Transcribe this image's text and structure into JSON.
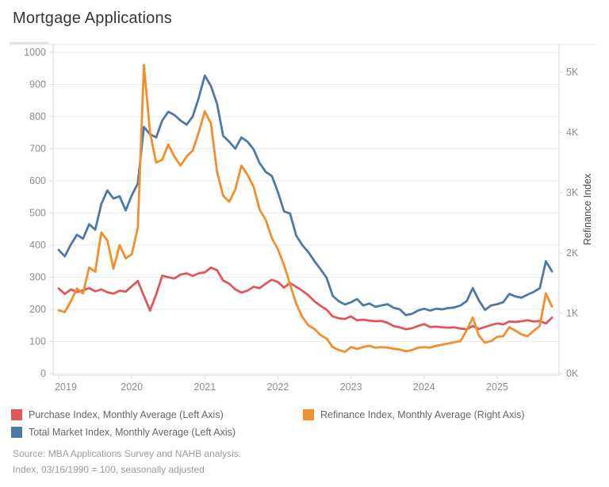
{
  "title": "Mortgage Applications",
  "source": {
    "line1": "Source: MBA Applications Survey and NAHB analysis.",
    "line2": "Index, 03/16/1990 = 100, seasonally adjusted"
  },
  "colors": {
    "purchase": "#e15759",
    "total_market": "#4e79a7",
    "refinance": "#f28e2b",
    "gridline": "#ececec",
    "axis_line": "#d7d7d7",
    "tick_label": "#8c8c8c",
    "axis_title": "#4a4a4a",
    "title_text": "#363636"
  },
  "chart_data": {
    "type": "line",
    "title": "Mortgage Applications",
    "x_tick_labels": [
      "2019",
      "2020",
      "2021",
      "2022",
      "2023",
      "2024",
      "2025"
    ],
    "x_months": {
      "start": "2019-01",
      "end": "2025-10",
      "count": 82
    },
    "left_axis": {
      "ticks": [
        0,
        100,
        200,
        300,
        400,
        500,
        600,
        700,
        800,
        900,
        1000
      ],
      "range": [
        0,
        1000
      ],
      "label": ""
    },
    "right_axis": {
      "tick_labels": [
        "0K",
        "1K",
        "2K",
        "3K",
        "4K",
        "5K"
      ],
      "range": [
        0,
        5000
      ],
      "label": "Refinance Index"
    },
    "grid": "horizontal-only",
    "legend_position": "bottom",
    "series": [
      {
        "id": "purchase",
        "legend_label": "Purchase Index, Monthly Average (Left Axis)",
        "axis": "left",
        "color": "#e15759",
        "values": [
          265,
          248,
          262,
          254,
          259,
          266,
          256,
          262,
          253,
          249,
          258,
          255,
          272,
          288,
          242,
          196,
          246,
          305,
          300,
          296,
          308,
          312,
          304,
          312,
          315,
          330,
          322,
          290,
          280,
          262,
          252,
          258,
          270,
          266,
          280,
          292,
          285,
          268,
          282,
          270,
          258,
          244,
          225,
          211,
          199,
          178,
          172,
          170,
          178,
          166,
          168,
          165,
          163,
          164,
          158,
          148,
          144,
          138,
          141,
          148,
          154,
          145,
          146,
          144,
          143,
          144,
          140,
          138,
          148,
          139,
          145,
          151,
          156,
          153,
          162,
          161,
          163,
          166,
          162,
          164,
          156,
          174
        ]
      },
      {
        "id": "total_market",
        "legend_label": "Total Market Index, Monthly Average (Left Axis)",
        "axis": "left",
        "color": "#4e79a7",
        "values": [
          385,
          365,
          402,
          432,
          420,
          465,
          448,
          528,
          570,
          545,
          552,
          508,
          555,
          592,
          768,
          745,
          735,
          788,
          815,
          805,
          788,
          775,
          800,
          858,
          928,
          895,
          840,
          740,
          722,
          700,
          735,
          722,
          698,
          655,
          628,
          615,
          565,
          505,
          498,
          430,
          400,
          378,
          350,
          325,
          298,
          242,
          225,
          215,
          222,
          232,
          212,
          218,
          208,
          212,
          216,
          205,
          200,
          182,
          186,
          196,
          202,
          196,
          202,
          200,
          204,
          206,
          212,
          226,
          266,
          228,
          198,
          212,
          216,
          222,
          248,
          240,
          236,
          246,
          254,
          266,
          350,
          318
        ]
      },
      {
        "id": "refinance",
        "legend_label": "Refinance Index, Monthly Average (Right Axis)",
        "axis": "right",
        "color": "#f28e2b",
        "values": [
          1050,
          1020,
          1200,
          1410,
          1330,
          1760,
          1690,
          2340,
          2210,
          1740,
          2130,
          1910,
          1980,
          2420,
          5120,
          4000,
          3500,
          3550,
          3800,
          3600,
          3450,
          3600,
          3700,
          4000,
          4350,
          4150,
          3350,
          2950,
          2850,
          3050,
          3450,
          3300,
          3100,
          2720,
          2550,
          2250,
          2060,
          1800,
          1480,
          1160,
          940,
          800,
          740,
          640,
          580,
          440,
          390,
          360,
          440,
          410,
          440,
          460,
          430,
          440,
          430,
          410,
          400,
          370,
          390,
          430,
          440,
          430,
          460,
          480,
          500,
          520,
          540,
          720,
          930,
          630,
          510,
          540,
          610,
          620,
          770,
          710,
          650,
          620,
          710,
          790,
          1330,
          1110
        ]
      }
    ]
  }
}
